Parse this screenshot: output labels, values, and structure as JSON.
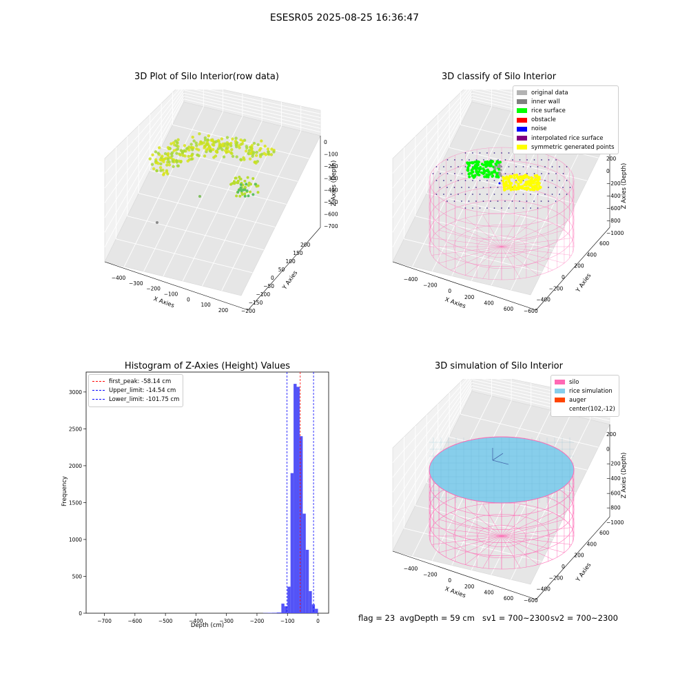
{
  "suptitle": "ESESR05 2025-08-25 16:36:47",
  "footer": {
    "flag": "flag = 23",
    "avg_depth": "avgDepth = 59 cm",
    "sv1": "sv1 = 700~2300",
    "sv2": "sv2 = 700~2300"
  },
  "colors": {
    "raw_points": "#c8e020",
    "grid_pane": "#f2f2f2",
    "silo": "#ff69b4",
    "rice_simulation": "#87ceeb",
    "auger": "#ff4500",
    "hist_bars": "#4a4af7",
    "first_peak_line": "#ff0000",
    "limit_lines": "#0000ff"
  },
  "chart_data": [
    {
      "type": "scatter",
      "subtype": "3d-scatter",
      "title": "3D Plot of Silo Interior(row data)",
      "xlabel": "X Axies",
      "ylabel": "Y Axies",
      "zlabel": "Z Axies (Depth)",
      "xticks": [
        "−400",
        "−300",
        "−200",
        "−100",
        "0",
        "100",
        "200"
      ],
      "yticks": [
        "200",
        "150",
        "100",
        "50",
        "0",
        "−50",
        "−100",
        "−150",
        "−200"
      ],
      "zticks": [
        "0",
        "−100",
        "−200",
        "−300",
        "−400",
        "−500",
        "−600",
        "−700"
      ],
      "xlim": [
        -450,
        250
      ],
      "ylim": [
        -200,
        200
      ],
      "zlim": [
        -750,
        30
      ]
    },
    {
      "type": "scatter",
      "subtype": "3d-classified",
      "title": "3D classify of Silo Interior",
      "xlabel": "X Axies",
      "ylabel": "Y Axies",
      "zlabel": "Z Axies (Depth)",
      "xticks": [
        "−400",
        "−200",
        "0",
        "200",
        "400",
        "600"
      ],
      "yticks": [
        "600",
        "400",
        "200",
        "0",
        "−200",
        "−400",
        "−600"
      ],
      "zticks": [
        "200",
        "0",
        "−200",
        "−400",
        "−600",
        "−800",
        "−1000"
      ],
      "legend_position": "top-right",
      "legend": [
        {
          "label": "original data",
          "color": "#b3b3b3"
        },
        {
          "label": "inner wall",
          "color": "#808080"
        },
        {
          "label": "rice surface",
          "color": "#00ff00"
        },
        {
          "label": "obstacle",
          "color": "#ff0000"
        },
        {
          "label": "noise",
          "color": "#0000ff"
        },
        {
          "label": "interpolated rice surface",
          "color": "#800080"
        },
        {
          "label": "symmetric generated points",
          "color": "#ffff00"
        }
      ]
    },
    {
      "type": "bar",
      "subtype": "histogram",
      "title": "Histogram of Z-Axies (Height) Values",
      "xlabel": "Depth (cm)",
      "ylabel": "Frequency",
      "xlim": [
        -760,
        35
      ],
      "ylim": [
        0,
        3270
      ],
      "xticks": [
        -700,
        -600,
        -500,
        -400,
        -300,
        -200,
        -100,
        0
      ],
      "yticks": [
        0,
        500,
        1000,
        1500,
        2000,
        2500,
        3000
      ],
      "bin_edges": [
        -180,
        -165,
        -150,
        -135,
        -120,
        -110,
        -100,
        -90,
        -80,
        -70,
        -60,
        -50,
        -40,
        -30,
        -20,
        -10,
        0
      ],
      "values": [
        3,
        5,
        6,
        10,
        130,
        95,
        360,
        1900,
        3110,
        3070,
        2400,
        1350,
        860,
        300,
        120,
        60
      ],
      "lines": [
        {
          "label": "first_peak: -58.14 cm",
          "x": -58.14,
          "color": "#ff0000"
        },
        {
          "label": "Upper_limit: -14.54 cm",
          "x": -14.54,
          "color": "#0000ff"
        },
        {
          "label": "Lower_limit: -101.75 cm",
          "x": -101.75,
          "color": "#0000ff"
        }
      ],
      "legend_position": "top-left"
    },
    {
      "type": "scatter",
      "subtype": "3d-simulation",
      "title": "3D simulation of Silo Interior",
      "xlabel": "X Axies",
      "ylabel": "Y Axies",
      "zlabel": "Z Axies (Depth)",
      "xticks": [
        "−400",
        "−200",
        "0",
        "200",
        "400",
        "600"
      ],
      "yticks": [
        "600",
        "400",
        "200",
        "0",
        "−200",
        "−400",
        "−600"
      ],
      "zticks": [
        "200",
        "0",
        "−200",
        "−400",
        "−600",
        "−800",
        "−1000"
      ],
      "legend_position": "top-right",
      "legend": [
        {
          "label": "silo",
          "color": "#ff69b4"
        },
        {
          "label": "rice simulation",
          "color": "#87ceeb"
        },
        {
          "label": "auger",
          "color": "#ff4500"
        },
        {
          "label": "center(102,-12)",
          "color": ""
        }
      ]
    }
  ]
}
